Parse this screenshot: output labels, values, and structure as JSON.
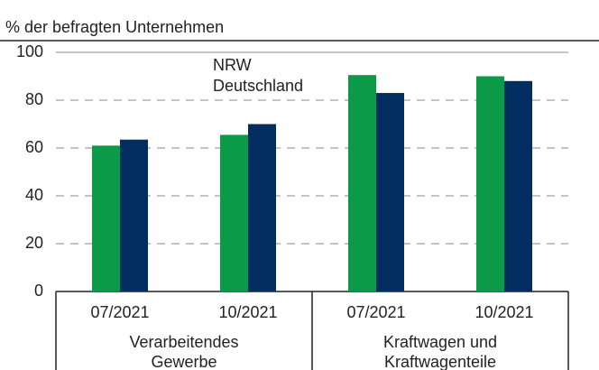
{
  "chart_data": {
    "type": "bar",
    "subtitle": "% der befragten Unternehmen",
    "groups": [
      {
        "label": [
          "Verarbeitendes",
          "Gewerbe"
        ],
        "categories": [
          "07/2021",
          "10/2021"
        ]
      },
      {
        "label": [
          "Kraftwagen und",
          "Kraftwagenteile"
        ],
        "categories": [
          "07/2021",
          "10/2021"
        ]
      }
    ],
    "series": [
      {
        "name": "NRW",
        "color": "#0a9a48",
        "values": [
          61,
          65.5,
          90.5,
          90
        ]
      },
      {
        "name": "Deutschland",
        "color": "#012d61",
        "values": [
          63.5,
          70,
          83,
          88
        ]
      }
    ],
    "ylim": [
      0,
      100
    ],
    "yticks": [
      0,
      20,
      40,
      60,
      80,
      100
    ],
    "grid": true
  }
}
